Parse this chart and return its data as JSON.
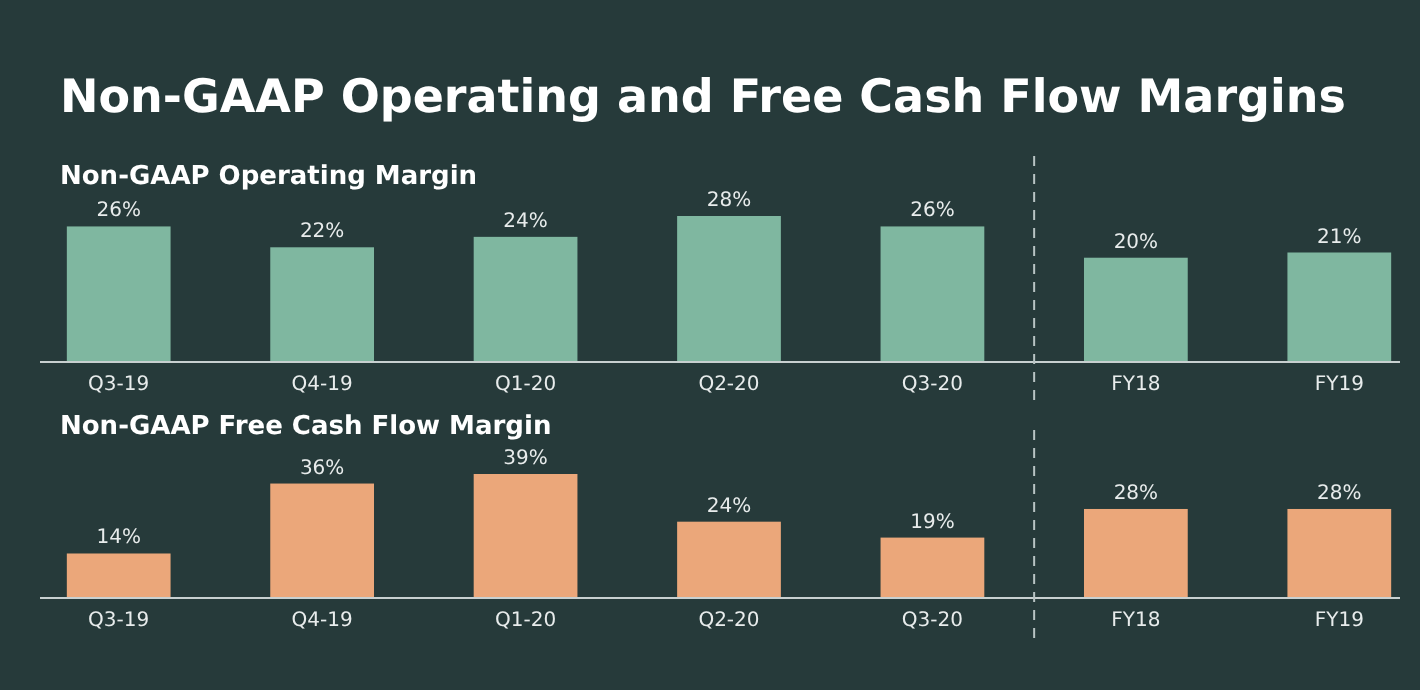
{
  "chart_data": [
    {
      "type": "bar",
      "title": "Non-GAAP Operating and Free Cash Flow Margins",
      "subtitle": "Non-GAAP Operating Margin",
      "categories": [
        "Q3-19",
        "Q4-19",
        "Q1-20",
        "Q2-20",
        "Q3-20",
        "FY18",
        "FY19"
      ],
      "values": [
        26,
        22,
        24,
        28,
        26,
        20,
        21
      ],
      "value_labels": [
        "26%",
        "22%",
        "24%",
        "28%",
        "26%",
        "20%",
        "21%"
      ],
      "color": "#7fb7a0"
    },
    {
      "type": "bar",
      "title": "Non-GAAP Free Cash Flow Margin",
      "categories": [
        "Q3-19",
        "Q4-19",
        "Q1-20",
        "Q2-20",
        "Q3-20",
        "FY18",
        "FY19"
      ],
      "values": [
        14,
        36,
        39,
        24,
        19,
        28,
        28
      ],
      "value_labels": [
        "14%",
        "36%",
        "39%",
        "24%",
        "19%",
        "28%",
        "28%"
      ],
      "color": "#eba77a"
    }
  ]
}
